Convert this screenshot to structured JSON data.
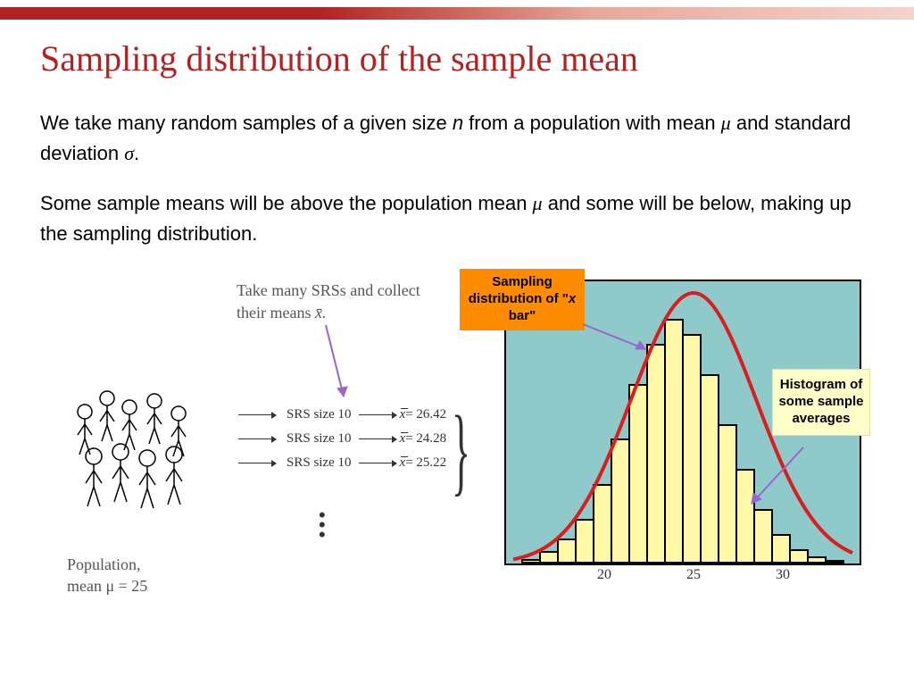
{
  "title": "Sampling distribution of the sample mean",
  "para1_a": "We take many random samples of a given size ",
  "para1_n": "n",
  "para1_b": " from a population with mean ",
  "para1_mu": "μ",
  "para1_c": " and standard deviation ",
  "para1_sigma": "σ",
  "para1_d": ".",
  "para2_a": "Some sample means will be above the population mean ",
  "para2_mu": "μ",
  "para2_b": " and some will be below, making up the sampling distribution.",
  "srs_caption_a": "Take many SRSs and collect their means ",
  "srs_caption_b": "x̄.",
  "srs_rows": [
    {
      "label": "SRS size 10",
      "xbar": "x",
      "eq": " = 26.42"
    },
    {
      "label": "SRS size 10",
      "xbar": "x",
      "eq": " = 24.28"
    },
    {
      "label": "SRS size 10",
      "xbar": "x",
      "eq": " = 25.22"
    }
  ],
  "pop_label_a": "Population,",
  "pop_label_b": "mean μ = 25",
  "callout_orange_a": "Sampling distribution of \"",
  "callout_orange_b": "x",
  "callout_orange_c": " bar\"",
  "callout_yellow": "Histogram of some sample averages",
  "chart": {
    "background": "#8fc9c9",
    "bar_fill": "#fff8a8",
    "bar_border": "#000000",
    "curve_color": "#d81e1e",
    "curve_width": 4,
    "x_ticks": [
      {
        "value": "20",
        "pos_pct": 28
      },
      {
        "value": "25",
        "pos_pct": 53
      },
      {
        "value": "30",
        "pos_pct": 78
      }
    ],
    "bar_heights_pct": [
      2,
      5,
      10,
      18,
      32,
      50,
      72,
      88,
      98,
      92,
      76,
      56,
      38,
      22,
      12,
      6,
      3,
      1
    ]
  },
  "colors": {
    "title": "#b22222",
    "arrow": "#9966cc",
    "orange_bg": "#ff8c00",
    "yellow_bg": "#fffdc8"
  }
}
